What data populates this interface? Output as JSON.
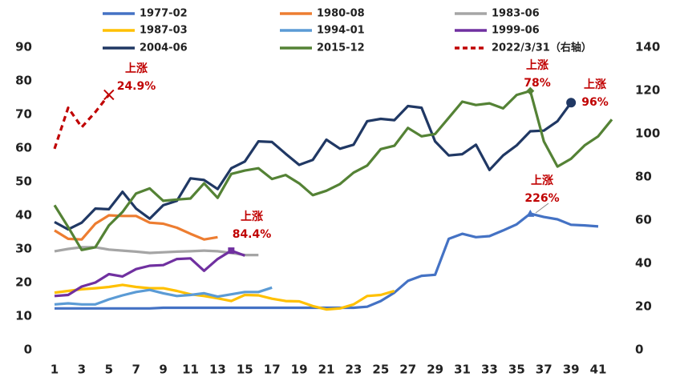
{
  "chart_data": {
    "type": "line",
    "x": [
      1,
      2,
      3,
      4,
      5,
      6,
      7,
      8,
      9,
      10,
      11,
      12,
      13,
      14,
      15,
      16,
      17,
      18,
      19,
      20,
      21,
      22,
      23,
      24,
      25,
      26,
      27,
      28,
      29,
      30,
      31,
      32,
      33,
      34,
      35,
      36,
      37,
      38,
      39,
      40,
      41,
      42
    ],
    "xlim": [
      1,
      42
    ],
    "xticks": [
      1,
      3,
      5,
      7,
      9,
      11,
      13,
      15,
      17,
      19,
      21,
      23,
      25,
      27,
      29,
      31,
      33,
      35,
      37,
      39,
      41
    ],
    "ylim": [
      0,
      90
    ],
    "yticks": [
      0,
      10,
      20,
      30,
      40,
      50,
      60,
      70,
      80,
      90
    ],
    "y2lim": [
      0,
      140
    ],
    "y2ticks": [
      0,
      20,
      40,
      60,
      80,
      100,
      120,
      140
    ],
    "series": [
      {
        "name": "1977-02",
        "color": "#4472c4",
        "values": [
          12.3,
          12.3,
          12.3,
          12.3,
          12.3,
          12.3,
          12.3,
          12.3,
          12.5,
          12.5,
          12.5,
          12.5,
          12.5,
          12.5,
          12.5,
          12.5,
          12.5,
          12.5,
          12.5,
          12.5,
          12.5,
          12.5,
          12.5,
          12.8,
          14.5,
          17,
          20.5,
          22,
          22.3,
          33,
          34.5,
          33.5,
          33.8,
          35.5,
          37.3,
          40.5,
          39.5,
          38.8,
          37.2,
          37,
          36.7,
          null
        ]
      },
      {
        "name": "1980-08",
        "color": "#ed7d31",
        "values": [
          35.5,
          33,
          32.8,
          37.5,
          40,
          39.8,
          39.8,
          37.8,
          37.5,
          36.3,
          34.5,
          32.8,
          33.5,
          null,
          null,
          null,
          null,
          null,
          null,
          null,
          null,
          null,
          null,
          null,
          null,
          null,
          null,
          null,
          null,
          null,
          null,
          null,
          null,
          null,
          null,
          null,
          null,
          null,
          null,
          null,
          null,
          null
        ]
      },
      {
        "name": "1983-06",
        "color": "#a5a5a5",
        "values": [
          29.3,
          30,
          30.5,
          30.5,
          29.8,
          29.5,
          29.2,
          28.8,
          29,
          29.2,
          29.3,
          29.5,
          29.3,
          28.8,
          28.2,
          28.2,
          null,
          null,
          null,
          null,
          null,
          null,
          null,
          null,
          null,
          null,
          null,
          null,
          null,
          null,
          null,
          null,
          null,
          null,
          null,
          null,
          null,
          null,
          null,
          null,
          null,
          null
        ]
      },
      {
        "name": "1987-03",
        "color": "#ffc000",
        "values": [
          17,
          17.5,
          18,
          18.3,
          18.7,
          19.3,
          18.7,
          18.3,
          18.3,
          17.5,
          16.5,
          16,
          15.3,
          14.5,
          16.3,
          16.2,
          15.2,
          14.5,
          14.4,
          13,
          12,
          12.3,
          13.5,
          16,
          16.3,
          17.5,
          null,
          null,
          null,
          null,
          null,
          null,
          null,
          null,
          null,
          null,
          null,
          null,
          null,
          null,
          null,
          null
        ]
      },
      {
        "name": "1994-01",
        "color": "#5b9bd5",
        "values": [
          13.5,
          13.8,
          13.5,
          13.5,
          15,
          16.2,
          17.2,
          17.8,
          16.8,
          16,
          16.3,
          16.8,
          15.8,
          16.5,
          17.2,
          17.2,
          18.5,
          null,
          null,
          null,
          null,
          null,
          null,
          null,
          null,
          null,
          null,
          null,
          null,
          null,
          null,
          null,
          null,
          null,
          null,
          null,
          null,
          null,
          null,
          null,
          null,
          null
        ]
      },
      {
        "name": "1999-06",
        "color": "#7030a0",
        "values": [
          16,
          16.3,
          18.8,
          20,
          22.5,
          21.8,
          24,
          25,
          25.2,
          27,
          27.2,
          23.5,
          27,
          29.5,
          28,
          null,
          null,
          null,
          null,
          null,
          null,
          null,
          null,
          null,
          null,
          null,
          null,
          null,
          null,
          null,
          null,
          null,
          null,
          null,
          null,
          null,
          null,
          null,
          null,
          null,
          null,
          null
        ]
      },
      {
        "name": "2004-06",
        "color": "#203864",
        "values": [
          38,
          35.8,
          37.8,
          42,
          41.8,
          47,
          42,
          39,
          43,
          44.3,
          51,
          50.5,
          47.8,
          54,
          56,
          62,
          61.8,
          58.3,
          55,
          56.5,
          62.5,
          59.8,
          61,
          68,
          68.7,
          68.3,
          72.5,
          72,
          62,
          57.8,
          58.2,
          61,
          53.5,
          57.8,
          60.8,
          65,
          65.2,
          68,
          73.5,
          null,
          null,
          null
        ]
      },
      {
        "name": "2015-12",
        "color": "#548235",
        "values": [
          43,
          36.5,
          29.7,
          30.5,
          37,
          41,
          46.5,
          48,
          44.3,
          44.7,
          45,
          49.5,
          45.2,
          52.3,
          53.3,
          54,
          50.8,
          52,
          49.5,
          46,
          47.3,
          49.3,
          52.7,
          54.8,
          59.7,
          60.7,
          66,
          63.5,
          64.2,
          69,
          73.8,
          72.8,
          73.3,
          71.8,
          75.8,
          77,
          62,
          54.5,
          56.8,
          60.8,
          63.5,
          68.5
        ]
      },
      {
        "name": "2022/3/31（右轴）",
        "color": "#c00000",
        "axis": "y2",
        "dashed": true,
        "values": [
          93,
          112,
          103,
          110,
          118,
          null,
          null,
          null,
          null,
          null,
          null,
          null,
          null,
          null,
          null,
          null,
          null,
          null,
          null,
          null,
          null,
          null,
          null,
          null,
          null,
          null,
          null,
          null,
          null,
          null,
          null,
          null,
          null,
          null,
          null,
          null,
          null,
          null,
          null,
          null,
          null,
          null
        ]
      }
    ],
    "annotations": [
      {
        "lines": [
          "上涨",
          "24.9%"
        ]
      },
      {
        "lines": [
          "上涨",
          "84.4%"
        ]
      },
      {
        "lines": [
          "上涨",
          "78%"
        ]
      },
      {
        "lines": [
          "上涨",
          "96%"
        ]
      },
      {
        "lines": [
          "上涨",
          "226%"
        ]
      }
    ]
  }
}
